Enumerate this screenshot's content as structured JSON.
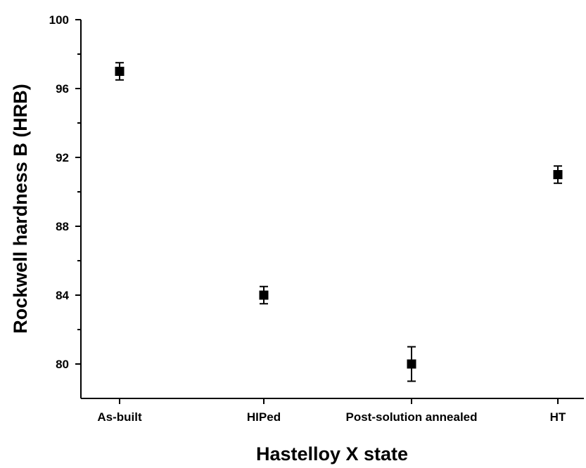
{
  "chart_data": {
    "type": "scatter",
    "title": "",
    "xlabel": "Hastelloy X state",
    "ylabel": "Rockwell hardness B (HRB)",
    "categories": [
      "As-built",
      "HIPed",
      "Post-solution annealed",
      "HT"
    ],
    "series": [
      {
        "values": [
          97,
          84,
          80,
          91
        ],
        "error": [
          0.5,
          0.5,
          1.0,
          0.5
        ],
        "marker": "square",
        "color": "#000000"
      }
    ],
    "ylim": [
      78,
      100
    ],
    "yticks": [
      80,
      84,
      88,
      92,
      96,
      100
    ],
    "grid": false,
    "legend": "none"
  }
}
